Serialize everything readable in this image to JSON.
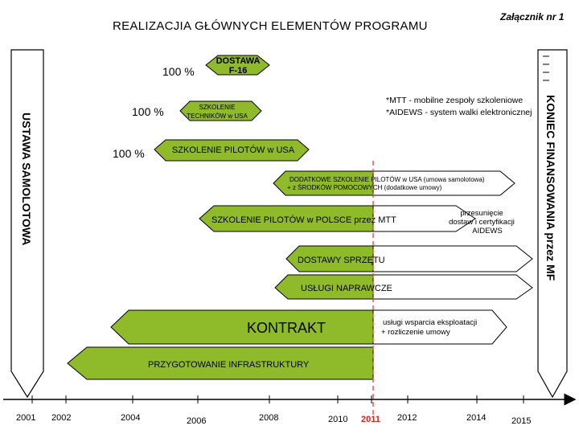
{
  "title": "REALIZACJIA GŁÓWNYCH ELEMENTÓW PROGRAMU",
  "annex": "Załącznik nr 1",
  "left_arrow_label": "USTAWA   SAMOLOTOWA",
  "right_arrow_label": "KONIEC  FINANSOWANIA przez MF",
  "notes": [
    "*MTT - mobilne zespoły szkoleniowe",
    "*AIDEWS - system walki elektronicznej"
  ],
  "percentages": [
    "100 %",
    "100 %",
    "100 %"
  ],
  "bars": {
    "dostawa": [
      "DOSTAWA",
      "F-16"
    ],
    "szkolenie_technikow": [
      "SZKOLENIE",
      "TECHNIKÓW w USA"
    ],
    "szkolenie_pilotow_usa": "SZKOLENIE  PILOTÓW w USA",
    "dodatkowe_szkolenie": [
      "DODATKOWE SZKOLENIE PILOTÓW  w  USA (umowa samolotowa)",
      "+ z  ŚRODKÓW  POMOCOWYCH (dodatkowe umowy)"
    ],
    "szkolenie_polska": "SZKOLENIE PILOTÓW w POLSCE przez MTT",
    "przesuniecie": [
      "przesunięcie",
      "dostaw i certyfikacji",
      "AIDEWS"
    ],
    "dostawy_sprzetu": "DOSTAWY SPRZĘTU",
    "uslugi_naprawcze": "USŁUGI  NAPRAWCZE",
    "kontrakt": "KONTRAKT",
    "uslugi_wsparcia": [
      "usługi wsparcia eksploatacji",
      "+ rozliczenie umowy"
    ],
    "infrastruktura": "PRZYGOTOWANIE INFRASTRUKTURY"
  },
  "years": [
    "2001",
    "2002",
    "2004",
    "2006",
    "2008",
    "2010",
    "2011",
    "2012",
    "2014",
    "2015"
  ],
  "highlight_year": "2011",
  "colors": {
    "bar_fill": "#8fba2a",
    "bar_stroke": "#000000",
    "outline_fill": "#ffffff",
    "marker_line": "#e03030",
    "highlight_year": "#d91e1e"
  }
}
